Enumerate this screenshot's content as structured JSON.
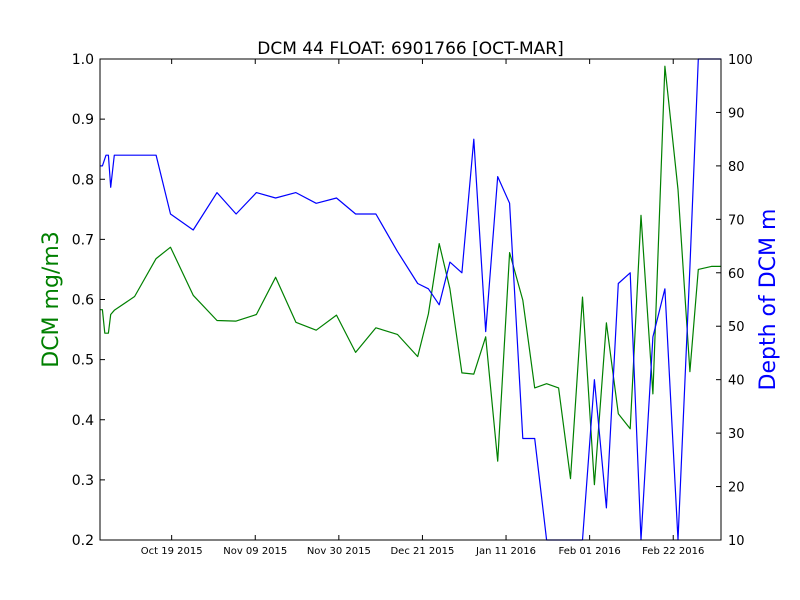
{
  "chart_data": {
    "type": "line",
    "title": "DCM 44 FLOAT: 6901766 [OCT-MAR]",
    "ylabel_left": "DCM mg/m3",
    "ylabel_right": "Depth of DCM m",
    "xlim": [
      -21,
      31
    ],
    "ylim_left": [
      0.2,
      1.0
    ],
    "ylim_right": [
      10,
      100
    ],
    "x_ticks": [
      {
        "x": -15,
        "label": "Oct 19 2015"
      },
      {
        "x": -8,
        "label": "Nov 09 2015"
      },
      {
        "x": -1,
        "label": "Nov 30 2015"
      },
      {
        "x": 6,
        "label": "Dec 21 2015"
      },
      {
        "x": 13,
        "label": "Jan 11 2016"
      },
      {
        "x": 20,
        "label": "Feb 01 2016"
      },
      {
        "x": 27,
        "label": "Feb 22 2016"
      }
    ],
    "y_ticks_left": [
      "0.2",
      "0.3",
      "0.4",
      "0.5",
      "0.6",
      "0.7",
      "0.8",
      "0.9",
      "1.0"
    ],
    "y_ticks_right": [
      "10",
      "20",
      "30",
      "40",
      "50",
      "60",
      "70",
      "80",
      "90",
      "100"
    ],
    "series": [
      {
        "name": "DCM",
        "axis": "left",
        "color": "#008000",
        "x": [
          -21,
          -20.8,
          -20.6,
          -20.3,
          -20.1,
          -19.8,
          -18.1,
          -16.3,
          -15.1,
          -13.2,
          -11.2,
          -9.6,
          -7.9,
          -6.3,
          -4.6,
          -2.9,
          -1.2,
          0.4,
          2.1,
          3.9,
          5.6,
          6.5,
          7.4,
          8.3,
          9.3,
          10.3,
          11.3,
          12.3,
          13.3,
          14.4,
          15.4,
          16.4,
          17.4,
          18.4,
          19.4,
          20.4,
          21.4,
          22.4,
          23.4,
          24.3,
          25.3,
          26.3,
          27.4,
          28.4,
          29.1,
          30.2,
          31
        ],
        "y": [
          0.583,
          0.583,
          0.544,
          0.544,
          0.575,
          0.582,
          0.605,
          0.668,
          0.687,
          0.607,
          0.565,
          0.564,
          0.575,
          0.637,
          0.562,
          0.549,
          0.574,
          0.512,
          0.553,
          0.542,
          0.505,
          0.576,
          0.693,
          0.618,
          0.478,
          0.476,
          0.538,
          0.331,
          0.678,
          0.599,
          0.453,
          0.46,
          0.453,
          0.302,
          0.604,
          0.292,
          0.561,
          0.41,
          0.385,
          0.74,
          0.443,
          0.988,
          0.783,
          0.48,
          0.65,
          0.655,
          0.655
        ]
      },
      {
        "name": "Depth of DCM",
        "axis": "right",
        "color": "#0000ff",
        "x": [
          -21,
          -20.8,
          -20.5,
          -20.3,
          -20.1,
          -19.8,
          -18.1,
          -16.3,
          -15.1,
          -13.2,
          -11.2,
          -9.6,
          -7.9,
          -6.3,
          -4.6,
          -2.9,
          -1.2,
          0.4,
          2.1,
          3.9,
          5.6,
          6.5,
          7.4,
          8.3,
          9.3,
          10.3,
          11.3,
          12.3,
          13.3,
          14.4,
          15.4,
          16.4,
          17.4,
          18.4,
          19.4,
          20.4,
          21.4,
          22.4,
          23.4,
          24.3,
          25.3,
          26.3,
          27.4,
          28.4,
          29.1,
          30.2,
          31
        ],
        "y": [
          80,
          80,
          82,
          82,
          76,
          82,
          82,
          82,
          71,
          68,
          75,
          71,
          75,
          74,
          75,
          73,
          74,
          71,
          71,
          64,
          58,
          57,
          54,
          62,
          60,
          85,
          49,
          78,
          73,
          29,
          29,
          10,
          10,
          10,
          10,
          40,
          16,
          58,
          60,
          10,
          48,
          57,
          10,
          61,
          100,
          100,
          100
        ]
      }
    ]
  }
}
